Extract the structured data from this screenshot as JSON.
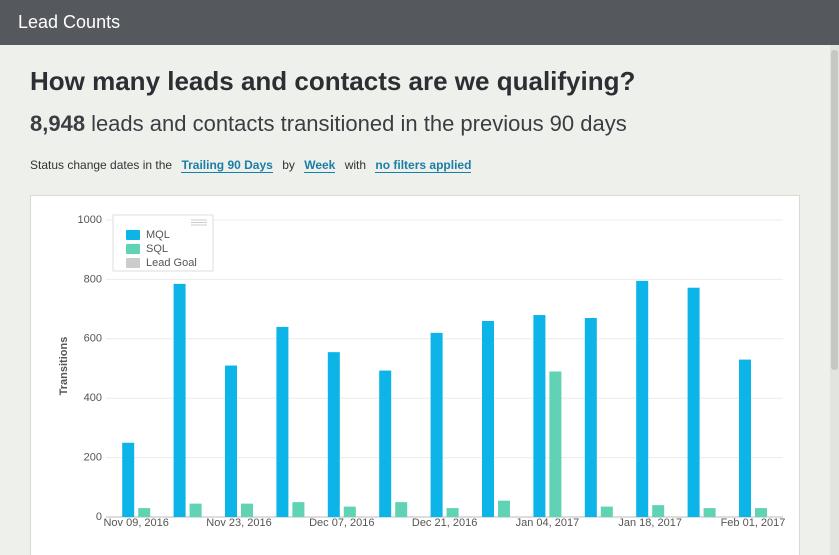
{
  "header": {
    "title": "Lead Counts"
  },
  "headline": "How many leads and contacts are we qualifying?",
  "summary": {
    "count": "8,948",
    "text": "leads and contacts transitioned in the previous 90 days"
  },
  "filters": [
    "Status change dates in the",
    "Trailing 90 Days",
    "by",
    "Week",
    "with",
    "no filters applied"
  ],
  "chart_data": {
    "type": "bar",
    "ylabel": "Transitions",
    "categories": [
      "Nov 09, 2016",
      null,
      "Nov 23, 2016",
      null,
      "Dec 07, 2016",
      null,
      "Dec 21, 2016",
      null,
      "Jan 04, 2017",
      null,
      "Jan 18, 2017",
      null,
      "Feb 01, 2017"
    ],
    "series": [
      {
        "name": "MQL",
        "color": "#0db4e8",
        "values": [
          250,
          785,
          510,
          640,
          555,
          493,
          620,
          660,
          680,
          670,
          795,
          772,
          530
        ]
      },
      {
        "name": "SQL",
        "color": "#5fd3b3",
        "values": [
          30,
          45,
          45,
          50,
          35,
          50,
          30,
          55,
          490,
          35,
          40,
          30,
          30
        ]
      },
      {
        "name": "Lead Goal",
        "color": "#cccccc",
        "hidden": true,
        "values": [
          null,
          null,
          null,
          null,
          null,
          null,
          null,
          null,
          null,
          null,
          null,
          null,
          null
        ]
      }
    ],
    "ylim": [
      0,
      1000
    ],
    "yticks": [
      0,
      200,
      400,
      600,
      800,
      1000
    ],
    "grid": true,
    "legend": "top-left"
  }
}
